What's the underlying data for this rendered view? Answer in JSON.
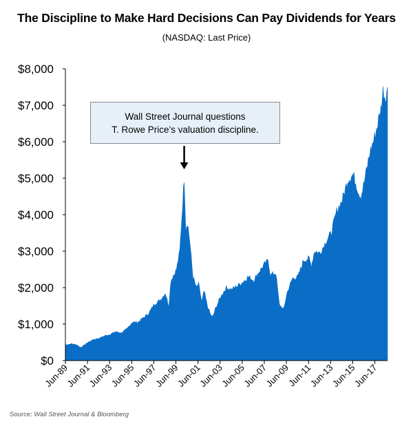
{
  "title": "The Discipline to Make Hard Decisions Can Pay Dividends for Years",
  "subtitle": "(NASDAQ: Last Price)",
  "annotation": {
    "line1": "Wall Street Journal questions",
    "line2": "T. Rowe Price’s valuation discipline."
  },
  "source": {
    "label": "Source:",
    "text": "Wall Street Journal & Bloomberg"
  },
  "colors": {
    "area": "#0a6ec7",
    "annotation_bg": "#e7f0f9"
  },
  "chart_data": {
    "type": "area",
    "title": "The Discipline to Make Hard Decisions Can Pay Dividends for Years",
    "subtitle": "(NASDAQ: Last Price)",
    "xlabel": "",
    "ylabel": "",
    "xlim": [
      1989.45,
      2018.6
    ],
    "ylim": [
      0,
      8000
    ],
    "grid": false,
    "legend": "none",
    "yticks": [
      {
        "value": 0,
        "label": "$0"
      },
      {
        "value": 1000,
        "label": "$1,000"
      },
      {
        "value": 2000,
        "label": "$2,000"
      },
      {
        "value": 3000,
        "label": "$3,000"
      },
      {
        "value": 4000,
        "label": "$4,000"
      },
      {
        "value": 5000,
        "label": "$5,000"
      },
      {
        "value": 6000,
        "label": "$6,000"
      },
      {
        "value": 7000,
        "label": "$7,000"
      },
      {
        "value": 8000,
        "label": "$8,000"
      }
    ],
    "xticks": [
      {
        "value": 1989.45,
        "label": "Jun-89"
      },
      {
        "value": 1991.45,
        "label": "Jun-91"
      },
      {
        "value": 1993.45,
        "label": "Jun-93"
      },
      {
        "value": 1995.45,
        "label": "Jun-95"
      },
      {
        "value": 1997.45,
        "label": "Jun-97"
      },
      {
        "value": 1999.45,
        "label": "Jun-99"
      },
      {
        "value": 2001.45,
        "label": "Jun-01"
      },
      {
        "value": 2003.45,
        "label": "Jun-03"
      },
      {
        "value": 2005.45,
        "label": "Jun-05"
      },
      {
        "value": 2007.45,
        "label": "Jun-07"
      },
      {
        "value": 2009.45,
        "label": "Jun-09"
      },
      {
        "value": 2011.45,
        "label": "Jun-11"
      },
      {
        "value": 2013.45,
        "label": "Jun-13"
      },
      {
        "value": 2015.45,
        "label": "Jun-15"
      },
      {
        "value": 2017.45,
        "label": "Jun-17"
      }
    ],
    "annotation_x": 2000.2,
    "series": [
      {
        "x": [
          1989.45,
          1990.0,
          1990.5,
          1990.8,
          1991.0,
          1991.5,
          1992.0,
          1992.5,
          1993.0,
          1993.5,
          1994.0,
          1994.5,
          1995.0,
          1995.5,
          1996.0,
          1996.5,
          1997.0,
          1997.5,
          1998.0,
          1998.5,
          1998.8,
          1999.0,
          1999.5,
          1999.8,
          2000.0,
          2000.2,
          2000.35,
          2000.5,
          2000.7,
          2000.9,
          2001.0,
          2001.3,
          2001.5,
          2001.8,
          2002.0,
          2002.3,
          2002.6,
          2002.8,
          2003.0,
          2003.5,
          2004.0,
          2004.5,
          2005.0,
          2005.5,
          2006.0,
          2006.5,
          2007.0,
          2007.5,
          2007.8,
          2008.0,
          2008.5,
          2008.8,
          2009.2,
          2009.5,
          2010.0,
          2010.5,
          2011.0,
          2011.5,
          2011.7,
          2012.0,
          2012.5,
          2013.0,
          2013.5,
          2014.0,
          2014.5,
          2015.0,
          2015.5,
          2016.0,
          2016.2,
          2016.5,
          2017.0,
          2017.5,
          2018.0,
          2018.2,
          2018.4,
          2018.6
        ],
        "values": [
          430,
          460,
          430,
          360,
          390,
          500,
          580,
          610,
          680,
          720,
          790,
          760,
          860,
          1050,
          1050,
          1170,
          1300,
          1550,
          1650,
          1850,
          1500,
          2200,
          2500,
          3000,
          4000,
          5000,
          3600,
          3800,
          3300,
          2600,
          2300,
          2000,
          2100,
          1600,
          1900,
          1500,
          1250,
          1200,
          1400,
          1750,
          2000,
          1950,
          2050,
          2150,
          2300,
          2200,
          2450,
          2650,
          2750,
          2350,
          2400,
          1550,
          1400,
          1850,
          2250,
          2300,
          2750,
          2800,
          2600,
          3000,
          2950,
          3250,
          3500,
          4100,
          4400,
          4950,
          5100,
          4600,
          4500,
          4900,
          5700,
          6200,
          6900,
          7400,
          7200,
          7500
        ]
      }
    ]
  }
}
